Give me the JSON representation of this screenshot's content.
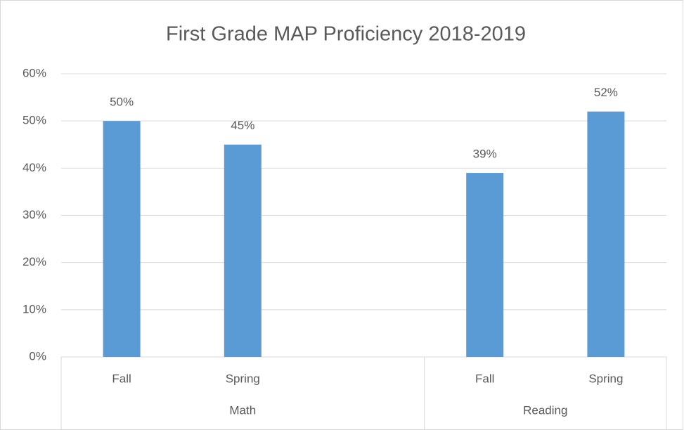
{
  "chart_data": {
    "type": "bar",
    "title": "First Grade MAP Proficiency 2018-2019",
    "categories": [
      "Fall",
      "Spring",
      null,
      "Fall",
      "Spring"
    ],
    "category_groups": [
      "Math",
      "Math",
      "Math",
      "Reading",
      "Reading"
    ],
    "values": [
      50,
      45,
      null,
      39,
      52
    ],
    "value_labels": [
      "50%",
      "45%",
      null,
      "39%",
      "52%"
    ],
    "color": "#5b9bd5",
    "ylim": [
      0,
      60
    ],
    "yticks": [
      {
        "value": 0,
        "label": "0%"
      },
      {
        "value": 10,
        "label": "10%"
      },
      {
        "value": 20,
        "label": "20%"
      },
      {
        "value": 30,
        "label": "30%"
      },
      {
        "value": 40,
        "label": "40%"
      },
      {
        "value": 50,
        "label": "50%"
      },
      {
        "value": 60,
        "label": "60%"
      }
    ],
    "grid": true
  }
}
